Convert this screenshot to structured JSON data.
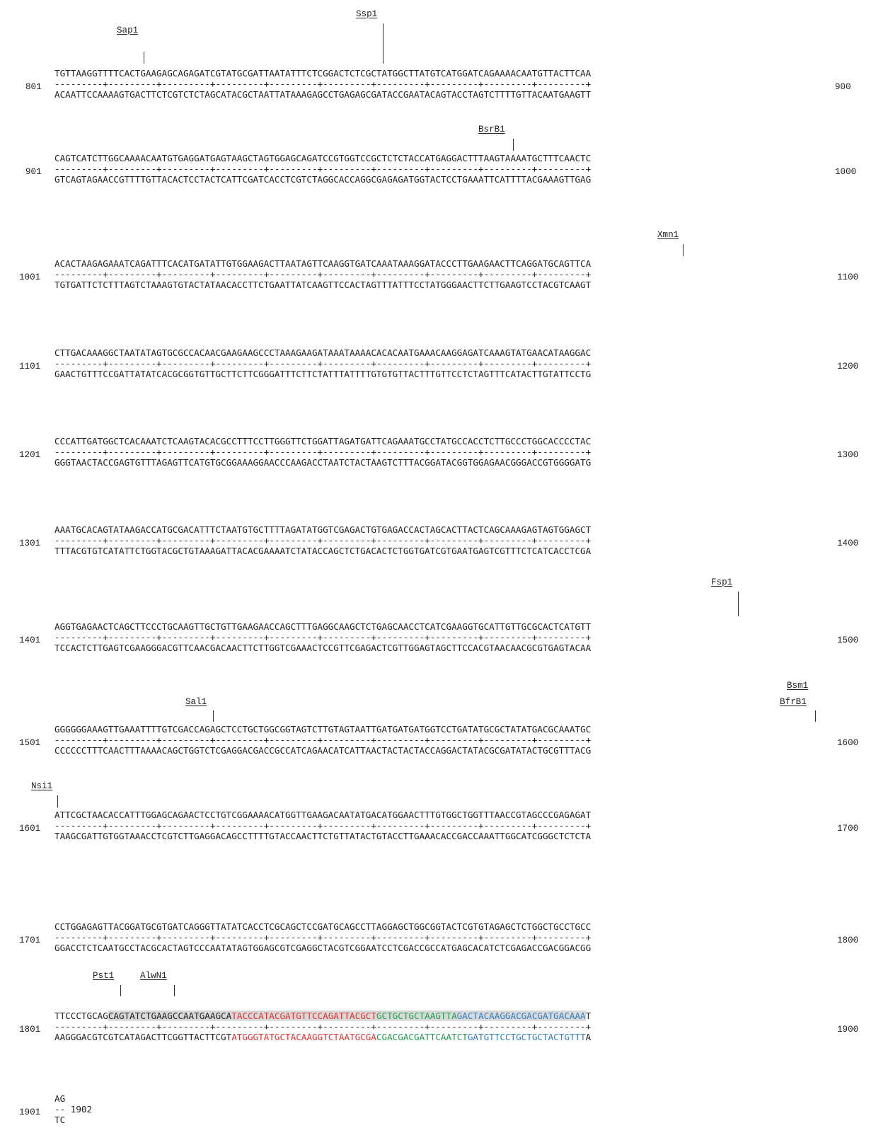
{
  "blocks": [
    {
      "start": "801",
      "end": "900",
      "top": "TGTTAAGGTTTTCACTGAAGAGCAGAGATCGTATGCGATTAATATTTCTCGGACTCTCGCTATGGCTTATGTCATGGATCAGAAAACAATGTTACTTCAA",
      "bottom": "ACAATTCCAAAAGTGACTTCTCGTCTCTAGCATACGCTAATTATAAAGAGCCTGAGAGCGATACCGAATACAGTACCTAGTCTTTTGTTACAATGAAGTT"
    },
    {
      "start": "901",
      "end": "1000",
      "top": "CAGTCATCTTGGCAAAACAATGTGAGGATGAGTAAGCTAGTGGAGCAGATCCGTGGTCCGCTCTCTACCATGAGGACTTTAAGTAAAATGCTTTCAACTC",
      "bottom": "GTCAGTAGAACCGTTTTGTTACACTCCTACTCATTCGATCACCTCGTCTAGGCACCAGGCGAGAGATGGTACTCCTGAAATTCATTTTACGAAAGTTGAG"
    },
    {
      "start": "1001",
      "end": "1100",
      "top": "ACACTAAGAGAAATCAGATTTCACATGATATTGTGGAAGACTTAATAGTTCAAGGTGATCAAATAAAGGATACCCTTGAAGAACTTCAGGATGCAGTTCA",
      "bottom": "TGTGATTCTCTTTAGTCTAAAGTGTACTATAACACCTTCTGAATTATCAAGTTCCACTAGTTTATTTCCTATGGGAACTTCTTGAAGTCCTACGTCAAGT"
    },
    {
      "start": "1101",
      "end": "1200",
      "top": "CTTGACAAAGGCTAATATAGTGCGCCACAACGAAGAAGCCCTAAAGAAGATAAATAAAACACACAATGAAACAAGGAGATCAAAGTATGAACATAAGGAC",
      "bottom": "GAACTGTTTCCGATTATATCACGCGGTGTTGCTTCTTCGGGATTTCTTCTATTTATTTTGTGTGTTACTTTGTTCCTCTAGTTTCATACTTGTATTCCTG"
    },
    {
      "start": "1201",
      "end": "1300",
      "top": "CCCATTGATGGCTCACAAATCTCAAGTACACGCCTTTCCTTGGGTTCTGGATTAGATGATTCAGAAATGCCTATGCCACCTCTTGCCCTGGCACCCCTAC",
      "bottom": "GGGTAACTACCGAGTGTTTAGAGTTCATGTGCGGAAAGGAACCCAAGACCTAATCTACTAAGTCTTTACGGATACGGTGGAGAACGGGACCGTGGGGATG"
    },
    {
      "start": "1301",
      "end": "1400",
      "top": "AAATGCACAGTATAAGACCATGCGACATTTCTAATGTGCTTTTAGATATGGTCGAGACTGTGAGACCACTAGCACTTACTCAGCAAAGAGTAGTGGAGCT",
      "bottom": "TTTACGTGTCATATTCTGGTACGCTGTAAAGATTACACGAAAATCTATACCAGCTCTGACACTCTGGTGATCGTGAATGAGTCGTTTCTCATCACCTCGA"
    },
    {
      "start": "1401",
      "end": "1500",
      "top": "AGGTGAGAACTCAGCTTCCCTGCAAGTTGCTGTTGAAGAACCAGCTTTGAGGCAAGCTCTGAGCAACCTCATCGAAGGTGCATTGTTGCGCACTCATGTT",
      "bottom": "TCCACTCTTGAGTCGAAGGGACGTTCAACGACAACTTCTTGGTCGAAACTCCGTTCGAGACTCGTTGGAGTAGCTTCCACGTAACAACGCGTGAGTACAA"
    },
    {
      "start": "1501",
      "end": "1600",
      "top": "GGGGGGAAAGTTGAAATTTTGTCGACCAGAGCTCCTGCTGGCGGTAGTCTTGTAGTAATTGATGATGATGGTCCTGATATGCGCTATATGACGCAAATGC",
      "bottom": "CCCCCCTTTCAACTTTAAAACAGCTGGTCTCGAGGACGACCGCCATCAGAACATCATTAACTACTACTACCAGGACTATACGCGATATACTGCGTTTACG"
    },
    {
      "start": "1601",
      "end": "1700",
      "top": "ATTCGCTAACACCATTTGGAGCAGAACTCCTGTCGGAAAACATGGTTGAAGACAATATGACATGGAACTTTGTGGCTGGTTTAACCGTAGCCCGAGAGAT",
      "bottom": "TAAGCGATTGTGGTAAACCTCGTCTTGAGGACAGCCTTTTGTACCAACTTCTGTTATACTGTACCTTGAAACACCGACCAAATTGGCATCGGGCTCTCTA"
    },
    {
      "start": "1701",
      "end": "1800",
      "top": "CCTGGAGAGTTACGGATGCGTGATCAGGGTTATATCACCTCGCAGCTCCGATGCAGCCTTAGGAGCTGGCGGTACTCGTGTAGAGCTCTGGCTGCCTGCC",
      "bottom": "GGACCTCTCAATGCCTACGCACTAGTCCCAATATAGTGGAGCGTCGAGGCTACGTCGGAATCCTCGACCGCCATGAGCACATCTCGAGACCGACGGACGG"
    },
    {
      "start": "1801",
      "end": "1900",
      "top_plain": "TTCCCTGCAG",
      "top_gray": "CAGTATCTGAAGCCAATGAAGCA",
      "top_red": "TACCCATACGATGTTCCAGATTACGCT",
      "top_green": "GCTGCTGCTAAGTTA",
      "top_blue": "GACTACAAGGACGACGATGACAAA",
      "top_end": "T",
      "bottom_plain": "AAGGGACGTCGTCATAGACTTCGGTTACTTCGT",
      "bottom_red": "ATGGGTATGCTACAAGGTCTAATGCGA",
      "bottom_green": "CGACGACGATTCAATCT",
      "bottom_blue": "GATGTTCCTGCTGCTACTGTTT",
      "bottom_end": "A"
    },
    {
      "start": "1901",
      "end": "1902",
      "top": "AG",
      "bottom": "TC"
    }
  ],
  "ruler": "---------+---------+---------+---------+---------+---------+---------+---------+---------+---------+",
  "ruler_short": "--",
  "sites": [
    "Sap1",
    "Ssp1",
    "BsrB1",
    "Xmn1",
    "Fsp1",
    "Sal1",
    "Bsm1",
    "BfrB1",
    "Nsi1",
    "Pst1",
    "AlwN1"
  ]
}
